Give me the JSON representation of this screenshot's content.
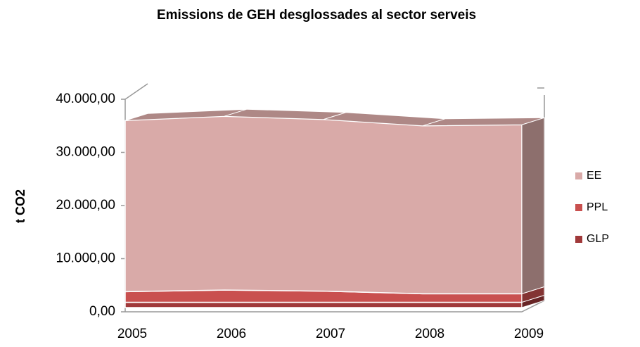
{
  "chart_data": {
    "type": "area3d_stacked",
    "title": "Emissions  de GEH desglossades al sector serveis",
    "y_label": "t CO2",
    "categories": [
      "2005",
      "2006",
      "2007",
      "2008",
      "2009"
    ],
    "series": [
      {
        "name": "GLP",
        "color": "#a0393a",
        "values": [
          1000,
          1000,
          1000,
          1000,
          1000
        ]
      },
      {
        "name": "PPL",
        "color": "#c9504f",
        "values": [
          2000,
          2300,
          2100,
          1600,
          1600
        ]
      },
      {
        "name": "EE",
        "color": "#d9aaa8",
        "values": [
          32200,
          32700,
          32300,
          31600,
          31800
        ]
      }
    ],
    "ylim": [
      0,
      40000
    ],
    "yticks": [
      {
        "value": 0,
        "label": "0,00"
      },
      {
        "value": 10000,
        "label": "10.000,00"
      },
      {
        "value": 20000,
        "label": "20.000,00"
      },
      {
        "value": 30000,
        "label": "30.000,00"
      },
      {
        "value": 40000,
        "label": "40.000,00"
      }
    ],
    "legend": "right"
  }
}
